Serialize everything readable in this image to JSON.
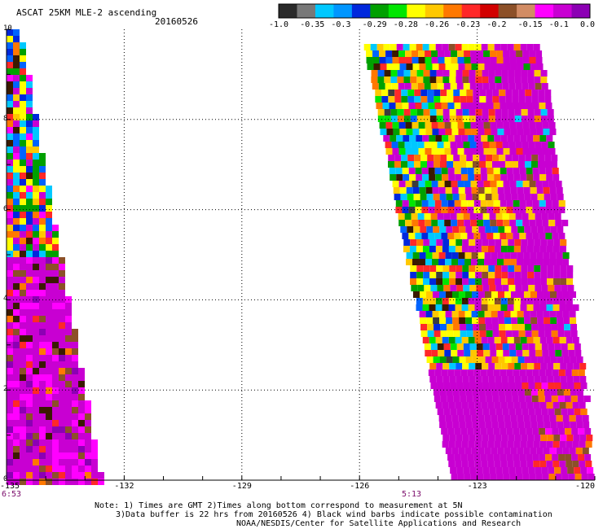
{
  "header": {
    "title": "ASCAT 25KM MLE-2 ascending",
    "date": "20160526"
  },
  "colorbar": {
    "labels": [
      "-1.0",
      "-0.35",
      "-0.3",
      "-0.29",
      "-0.28",
      "-0.26",
      "-0.23",
      "-0.2",
      "-0.15",
      "-0.1",
      "0.0"
    ],
    "colors": [
      "#2a2a2a",
      "#787878",
      "#00c8ff",
      "#0096ff",
      "#0028dc",
      "#00a000",
      "#00e600",
      "#ffff00",
      "#ffc800",
      "#ff7800",
      "#ff2828",
      "#d20000",
      "#8c5028",
      "#d28c64",
      "#ff00ff",
      "#c800d2",
      "#8c00b4"
    ]
  },
  "map": {
    "x_ticks": [
      "-135",
      "-132",
      "-129",
      "-126",
      "-123",
      "-120"
    ],
    "y_ticks": [
      "10",
      "8",
      "6",
      "4",
      "2",
      "0"
    ],
    "lon_range": [
      -135,
      -120
    ],
    "lat_range": [
      0,
      10
    ],
    "pass_times": [
      {
        "label": "6:53",
        "lon": -135
      },
      {
        "label": "5:13",
        "lon": -124.8
      }
    ]
  },
  "notes": {
    "line1": "Note: 1) Times are GMT 2)Times along bottom correspond to measurement at 5N",
    "line2": "3)Data buffer is 22 hrs from 20160526 4) Black wind barbs indicate possible contamination",
    "line3": "NOAA/NESDIS/Center for Satellite Applications and Research"
  }
}
